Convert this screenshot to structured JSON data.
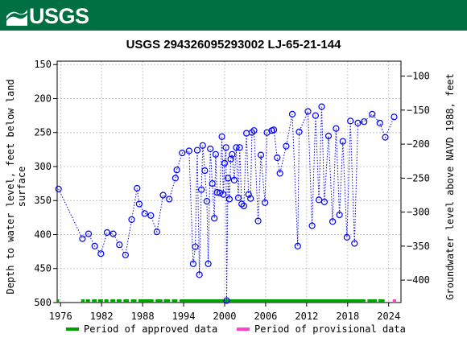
{
  "header": {
    "logo_text": "USGS"
  },
  "chart_data": {
    "type": "scatter",
    "title": "USGS 294326095293002 LJ-65-21-144",
    "ylabel_left": "Depth to water level, feet below land surface",
    "ylabel_left_lines": [
      "Depth to water level, feet below land",
      "surface"
    ],
    "ylabel_right": "Groundwater level above NAVD 1988, feet",
    "x_range": [
      1975.5,
      2025.8
    ],
    "y_left_range": [
      500,
      145
    ],
    "y_right_range": [
      -433,
      -78
    ],
    "x_ticks": [
      1976,
      1982,
      1988,
      1994,
      2000,
      2006,
      2012,
      2018,
      2024
    ],
    "y_left_ticks": [
      150,
      200,
      250,
      300,
      350,
      400,
      450,
      500
    ],
    "y_right_ticks": [
      -100,
      -150,
      -200,
      -250,
      -300,
      -350,
      -400
    ],
    "grid": true,
    "series": [
      {
        "points": [
          [
            1975.7,
            333
          ],
          [
            1979.2,
            406
          ],
          [
            1980.1,
            399
          ],
          [
            1981.0,
            417
          ],
          [
            1981.9,
            428
          ],
          [
            1982.8,
            397
          ],
          [
            1983.7,
            399
          ],
          [
            1984.6,
            415
          ],
          [
            1985.5,
            430
          ],
          [
            1986.4,
            378
          ],
          [
            1987.2,
            332
          ],
          [
            1987.5,
            355
          ],
          [
            1988.3,
            369
          ],
          [
            1989.2,
            372
          ],
          [
            1990.1,
            396
          ],
          [
            1991.0,
            342
          ],
          [
            1991.9,
            348
          ],
          [
            1992.8,
            317
          ],
          [
            1993.0,
            305
          ],
          [
            1993.8,
            280
          ],
          [
            1994.8,
            277
          ],
          [
            1995.4,
            443
          ],
          [
            1995.7,
            418
          ],
          [
            1996.0,
            276
          ],
          [
            1996.3,
            459
          ],
          [
            1996.6,
            334
          ],
          [
            1996.8,
            269
          ],
          [
            1997.1,
            306
          ],
          [
            1997.4,
            351
          ],
          [
            1997.6,
            443
          ],
          [
            1997.9,
            274
          ],
          [
            1998.2,
            325
          ],
          [
            1998.5,
            376
          ],
          [
            1998.7,
            282
          ],
          [
            1998.9,
            338
          ],
          [
            1999.3,
            339
          ],
          [
            1999.6,
            256
          ],
          [
            1999.8,
            341
          ],
          [
            2000.0,
            295
          ],
          [
            2000.2,
            272
          ],
          [
            2000.3,
            497
          ],
          [
            2000.5,
            317
          ],
          [
            2000.7,
            348
          ],
          [
            2000.9,
            289
          ],
          [
            2001.1,
            282
          ],
          [
            2001.4,
            320
          ],
          [
            2001.7,
            272
          ],
          [
            2002.0,
            346
          ],
          [
            2002.2,
            272
          ],
          [
            2002.5,
            355
          ],
          [
            2002.8,
            358
          ],
          [
            2003.2,
            251
          ],
          [
            2003.5,
            341
          ],
          [
            2003.8,
            347
          ],
          [
            2004.0,
            250
          ],
          [
            2004.3,
            247
          ],
          [
            2004.9,
            380
          ],
          [
            2005.3,
            283
          ],
          [
            2005.9,
            353
          ],
          [
            2006.2,
            250
          ],
          [
            2006.9,
            247
          ],
          [
            2007.2,
            246
          ],
          [
            2007.7,
            287
          ],
          [
            2008.1,
            310
          ],
          [
            2009.0,
            270
          ],
          [
            2009.9,
            223
          ],
          [
            2010.7,
            417
          ],
          [
            2010.9,
            249
          ],
          [
            2012.2,
            219
          ],
          [
            2012.8,
            387
          ],
          [
            2013.3,
            225
          ],
          [
            2013.8,
            349
          ],
          [
            2014.2,
            212
          ],
          [
            2014.6,
            352
          ],
          [
            2015.2,
            255
          ],
          [
            2015.8,
            381
          ],
          [
            2016.3,
            244
          ],
          [
            2016.8,
            371
          ],
          [
            2017.3,
            263
          ],
          [
            2017.9,
            404
          ],
          [
            2018.4,
            233
          ],
          [
            2019.0,
            413
          ],
          [
            2019.5,
            236
          ],
          [
            2020.4,
            234
          ],
          [
            2021.6,
            223
          ],
          [
            2022.7,
            236
          ],
          [
            2023.5,
            257
          ],
          [
            2024.8,
            227
          ]
        ]
      }
    ],
    "approved_periods": [
      [
        1975.5,
        1975.8
      ],
      [
        1979.0,
        1979.5
      ],
      [
        1979.7,
        1980.3
      ],
      [
        1980.6,
        1981.3
      ],
      [
        1981.5,
        1982.2
      ],
      [
        1982.4,
        1983.0
      ],
      [
        1983.3,
        1984.0
      ],
      [
        1984.2,
        1984.9
      ],
      [
        1985.2,
        1986.0
      ],
      [
        1986.3,
        1987.1
      ],
      [
        1987.4,
        1989.6
      ],
      [
        1989.9,
        1990.9
      ],
      [
        1991.1,
        1992.0
      ],
      [
        1992.3,
        1993.1
      ],
      [
        1993.4,
        2020.6
      ],
      [
        2020.9,
        2022.3
      ],
      [
        2022.5,
        2023.4
      ]
    ],
    "provisional_periods": [
      [
        2024.6,
        2025.1
      ]
    ],
    "legend": [
      "Period of approved data",
      "Period of provisional data"
    ],
    "legend_position": "bottom",
    "colors": {
      "points": "#0000ff",
      "line": "#0000ff",
      "approved": "#00a000",
      "provisional": "#ff44cc",
      "grid": "#c8c8c8",
      "banner": "#006f41"
    }
  }
}
